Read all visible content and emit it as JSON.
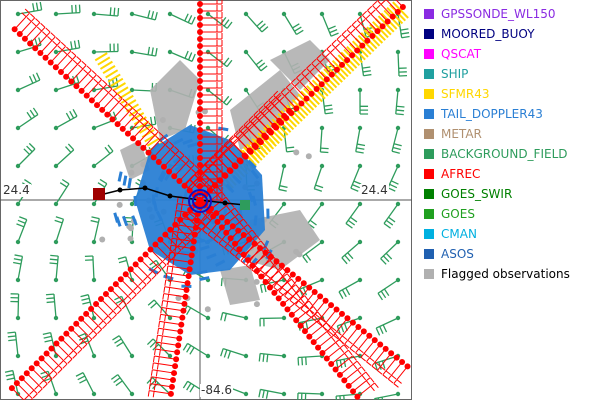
{
  "map": {
    "coords": {
      "lat_left": "24.4",
      "lat_right": "24.4",
      "lon_bottom": "-84.6"
    },
    "layer_colors": {
      "barb": "#2e9c5c",
      "afrec": "#ff0000",
      "sfmr": "#ffd700",
      "tail_doppler": "#2a7fd4",
      "flagged": "#b0b0b0",
      "center": "#1010c0",
      "track": "#000000",
      "track_start": "#a00000"
    }
  },
  "legend": {
    "items": [
      {
        "label": "GPSSONDE_WL150",
        "color": "#8a2be2",
        "text_color": "#8a2be2"
      },
      {
        "label": "MOORED_BUOY",
        "color": "#000080",
        "text_color": "#000080"
      },
      {
        "label": "QSCAT",
        "color": "#ff00ff",
        "text_color": "#ff00ff"
      },
      {
        "label": "SHIP",
        "color": "#20a0a0",
        "text_color": "#20a0a0"
      },
      {
        "label": "SFMR43",
        "color": "#ffd700",
        "text_color": "#ffd700"
      },
      {
        "label": "TAIL_DOPPLER43",
        "color": "#2a7fd4",
        "text_color": "#2a7fd4"
      },
      {
        "label": "METAR",
        "color": "#b09070",
        "text_color": "#b09070"
      },
      {
        "label": "BACKGROUND_FIELD",
        "color": "#2e9c5c",
        "text_color": "#2e9c5c"
      },
      {
        "label": "AFREC",
        "color": "#ff0000",
        "text_color": "#ff0000"
      },
      {
        "label": "GOES_SWIR",
        "color": "#008000",
        "text_color": "#008000"
      },
      {
        "label": "GOES",
        "color": "#20a020",
        "text_color": "#20a020"
      },
      {
        "label": "CMAN",
        "color": "#00b0e0",
        "text_color": "#00b0e0"
      },
      {
        "label": "ASOS",
        "color": "#2060b0",
        "text_color": "#2060b0"
      },
      {
        "label": "Flagged observations",
        "color": "#b0b0b0",
        "text_color": "#000000"
      }
    ]
  }
}
